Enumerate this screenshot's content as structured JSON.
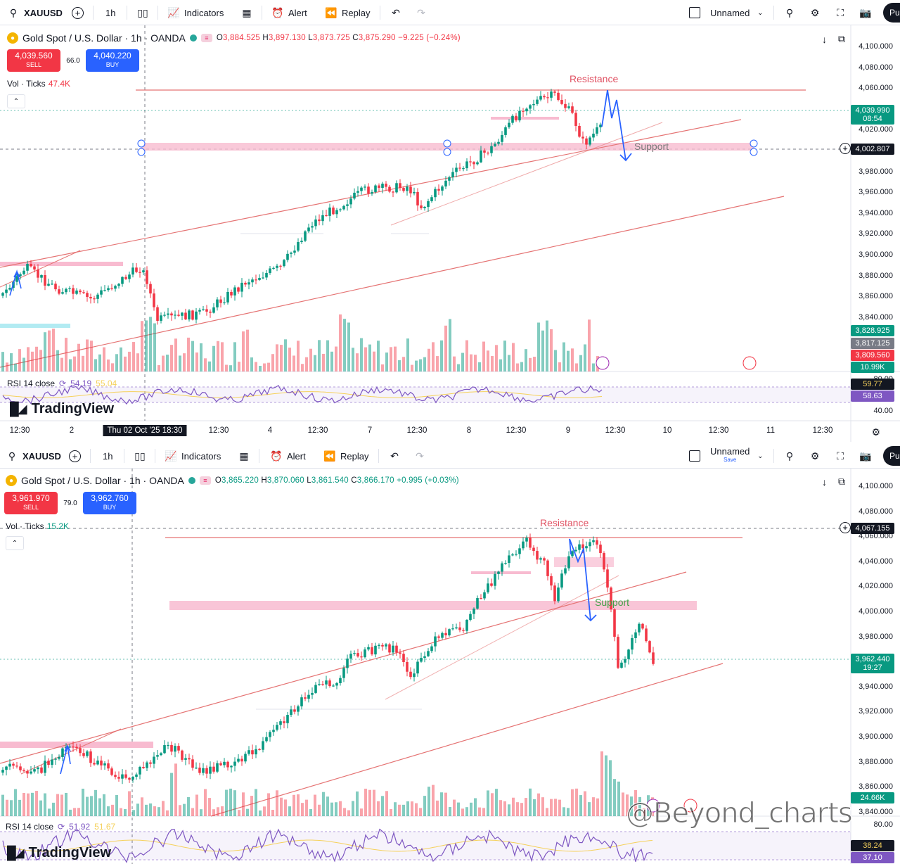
{
  "top": {
    "toolbar": {
      "symbol": "XAUUSD",
      "interval": "1h",
      "indicators": "Indicators",
      "alert": "Alert",
      "replay": "Replay",
      "layout": "Unnamed",
      "layout_sub": "",
      "publish": "Pu"
    },
    "legend": {
      "title": "Gold Spot / U.S. Dollar · 1h · OANDA",
      "o": "3,884.525",
      "h": "3,897.130",
      "l": "3,873.725",
      "c": "3,875.290",
      "chg": "−9.225 (−0.24%)"
    },
    "sell": {
      "price": "4,039.560",
      "label": "SELL"
    },
    "buy": {
      "price": "4,040.220",
      "label": "BUY"
    },
    "spread": "66.0",
    "vol": {
      "label": "Vol · Ticks",
      "value": "47.4K"
    },
    "yaxis": [
      "4,100.000",
      "4,080.000",
      "4,060.000",
      "4,040.000",
      "4,020.000",
      "4,000.000",
      "3,980.000",
      "3,960.000",
      "3,940.000",
      "3,920.000",
      "3,900.000",
      "3,880.000",
      "3,860.000",
      "3,840.000"
    ],
    "tags": {
      "price": {
        "value": "4,039.990",
        "timer": "08:54",
        "color": "#089981"
      },
      "cross": {
        "value": "4,002.807"
      },
      "p1": {
        "value": "3,828.925",
        "color": "#089981"
      },
      "p2": {
        "value": "3,817.125",
        "color": "#787b86"
      },
      "p3": {
        "value": "3,809.560",
        "color": "#f23645"
      },
      "vol": {
        "value": "10.99K",
        "color": "#089981"
      }
    },
    "rsi": {
      "label": "RSI 14 close",
      "v1": "54.19",
      "v2": "55.04",
      "axis80": "80.00",
      "axis40": "40.00",
      "tag1": "59.77",
      "tag2": "58.63"
    },
    "annotations": {
      "resistance": "Resistance",
      "support": "Support"
    },
    "time_axis": [
      "12:30",
      "2",
      "Thu 02 Oct '25   18:30",
      "12:30",
      "4",
      "12:30",
      "7",
      "12:30",
      "8",
      "12:30",
      "9",
      "12:30",
      "10",
      "12:30",
      "11",
      "12:30"
    ],
    "logo": "TradingView"
  },
  "bottom": {
    "toolbar": {
      "symbol": "XAUUSD",
      "interval": "1h",
      "indicators": "Indicators",
      "alert": "Alert",
      "replay": "Replay",
      "layout": "Unnamed",
      "layout_sub": "Save",
      "publish": "Pu"
    },
    "legend": {
      "title": "Gold Spot / U.S. Dollar · 1h · OANDA",
      "o": "3,865.220",
      "h": "3,870.060",
      "l": "3,861.540",
      "c": "3,866.170",
      "chg": "+0.995 (+0.03%)"
    },
    "sell": {
      "price": "3,961.970",
      "label": "SELL"
    },
    "buy": {
      "price": "3,962.760",
      "label": "BUY"
    },
    "spread": "79.0",
    "vol": {
      "label": "Vol · Ticks",
      "value": "15.2K"
    },
    "yaxis": [
      "4,100.000",
      "4,080.000",
      "4,060.000",
      "4,040.000",
      "4,020.000",
      "4,000.000",
      "3,980.000",
      "3,960.000",
      "3,940.000",
      "3,920.000",
      "3,900.000",
      "3,880.000",
      "3,860.000",
      "3,840.000"
    ],
    "tags": {
      "price": {
        "value": "3,962.440",
        "timer": "19:27",
        "color": "#089981"
      },
      "cross": {
        "value": "4,067.155"
      },
      "vol": {
        "value": "24.66K",
        "color": "#089981"
      }
    },
    "rsi": {
      "label": "RSI 14 close",
      "v1": "51.92",
      "v2": "51.67",
      "axis80": "80.00",
      "tag1": "38.24",
      "tag2": "37.10"
    },
    "annotations": {
      "resistance": "Resistance",
      "support": "Support"
    },
    "logo": "TradingView"
  },
  "watermark": "@Beyond_charts",
  "colors": {
    "up": "#089981",
    "down": "#f23645",
    "trend": "#e57373",
    "zone": "#f8bbd0",
    "arrow": "#2962ff"
  }
}
